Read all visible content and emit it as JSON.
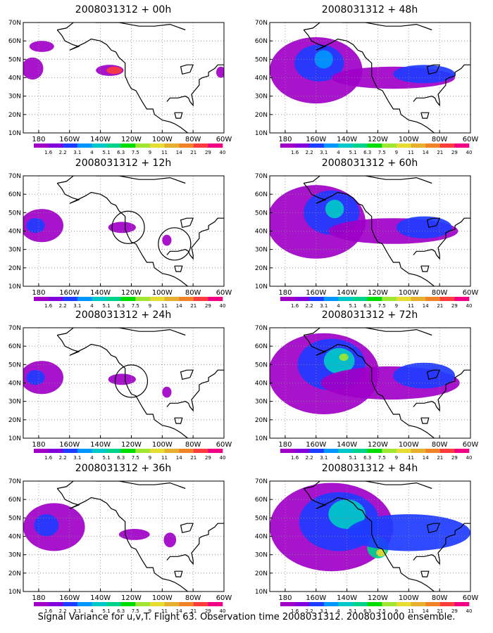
{
  "axes": {
    "lat_labels": [
      "70N",
      "60N",
      "50N",
      "40N",
      "30N",
      "20N",
      "10N"
    ],
    "lon_labels": [
      "180",
      "160W",
      "140W",
      "120W",
      "100W",
      "80W",
      "60W"
    ]
  },
  "colorbar": {
    "labels": [
      "1.6",
      "2.2",
      "3.1",
      "4",
      "5.1",
      "6.3",
      "7.5",
      "9",
      "11",
      "14",
      "21",
      "29",
      "40"
    ],
    "colors": [
      "#a000c8",
      "#8200dc",
      "#1e3cff",
      "#0096ff",
      "#00c8c8",
      "#00d28c",
      "#00dc00",
      "#a0e632",
      "#e6dc32",
      "#e6af2d",
      "#f08228",
      "#fa3c3c",
      "#f00082"
    ]
  },
  "panels": [
    {
      "title": "2008031312 + 00h",
      "level": 1,
      "circles": []
    },
    {
      "title": "2008031312 + 12h",
      "level": 2,
      "circles": [
        [
          -122,
          42
        ],
        [
          -92,
          33
        ]
      ]
    },
    {
      "title": "2008031312 + 24h",
      "level": 2,
      "circles": [
        [
          -120,
          41
        ]
      ]
    },
    {
      "title": "2008031312 + 36h",
      "level": 3,
      "circles": []
    },
    {
      "title": "2008031312 + 48h",
      "level": 4,
      "circles": []
    },
    {
      "title": "2008031312 + 60h",
      "level": 5,
      "circles": []
    },
    {
      "title": "2008031312 + 72h",
      "level": 6,
      "circles": []
    },
    {
      "title": "2008031312 + 84h",
      "level": 7,
      "circles": []
    }
  ],
  "caption": "Signal Variance for u,v,T. Flight 63. Observation time 2008031312. 2008031000 ensemble."
}
